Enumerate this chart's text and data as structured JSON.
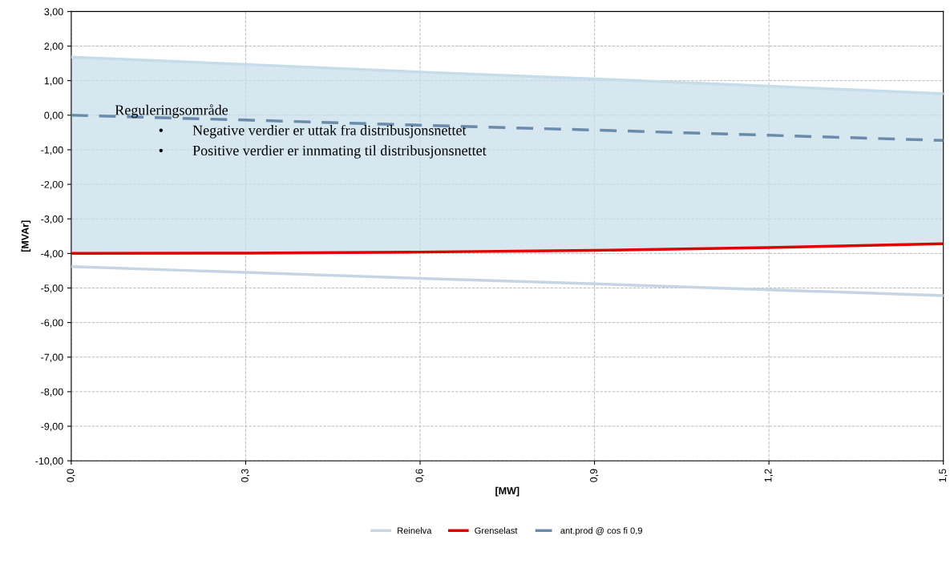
{
  "chart_data": {
    "type": "line",
    "xlabel": "[MW]",
    "ylabel": "[MVAr]",
    "xlim": [
      0,
      1.5
    ],
    "ylim": [
      -10,
      3
    ],
    "xticks": [
      {
        "value": 0,
        "label": "0,0"
      },
      {
        "value": 0.3,
        "label": "0,3"
      },
      {
        "value": 0.6,
        "label": "0,6"
      },
      {
        "value": 0.9,
        "label": "0,9"
      },
      {
        "value": 1.2,
        "label": "1,2"
      },
      {
        "value": 1.5,
        "label": "1,5"
      }
    ],
    "yticks": [
      {
        "value": -10,
        "label": "-10,00"
      },
      {
        "value": -9,
        "label": "-9,00"
      },
      {
        "value": -8,
        "label": "-8,00"
      },
      {
        "value": -7,
        "label": "-7,00"
      },
      {
        "value": -6,
        "label": "-6,00"
      },
      {
        "value": -5,
        "label": "-5,00"
      },
      {
        "value": -4,
        "label": "-4,00"
      },
      {
        "value": -3,
        "label": "-3,00"
      },
      {
        "value": -2,
        "label": "-2,00"
      },
      {
        "value": -1,
        "label": "-1,00"
      },
      {
        "value": 0,
        "label": "0,00"
      },
      {
        "value": 1,
        "label": "1,00"
      },
      {
        "value": 2,
        "label": "2,00"
      },
      {
        "value": 3,
        "label": "3,00"
      }
    ],
    "x": [
      0,
      0.3,
      0.6,
      0.9,
      1.2,
      1.5
    ],
    "series": [
      {
        "type": "line",
        "color": "#c5dde8",
        "values": [
          1.68,
          1.47,
          1.25,
          1.05,
          0.84,
          0.62
        ],
        "lower": [
          -4.0,
          -3.99,
          -3.96,
          -3.91,
          -3.83,
          -3.72
        ],
        "upper": [
          1.68,
          1.47,
          1.25,
          1.05,
          0.84,
          0.62
        ]
      },
      {
        "name": "Reinelva",
        "color": "#c5d5e4",
        "values": [
          -4.38,
          -4.55,
          -4.72,
          -4.88,
          -5.05,
          -5.22
        ]
      },
      {
        "name": "Grenselast",
        "color": "#e00000",
        "values": [
          -4.0,
          -3.99,
          -3.96,
          -3.91,
          -3.83,
          -3.72
        ]
      },
      {
        "name": "ant.prod @ cos fi 0,9",
        "color": "#6a8bab",
        "line_style": "dashed",
        "values": [
          0,
          -0.14,
          -0.29,
          -0.43,
          -0.58,
          -0.73
        ]
      }
    ],
    "annotations": [
      "Reguleringsområde",
      "•        Negative verdier er uttak fra distribusjonsnettet",
      "•        Positive verdier er innmating til distribusjonsnettet"
    ],
    "grid": true,
    "legend": "bottom",
    "marker": "none"
  }
}
